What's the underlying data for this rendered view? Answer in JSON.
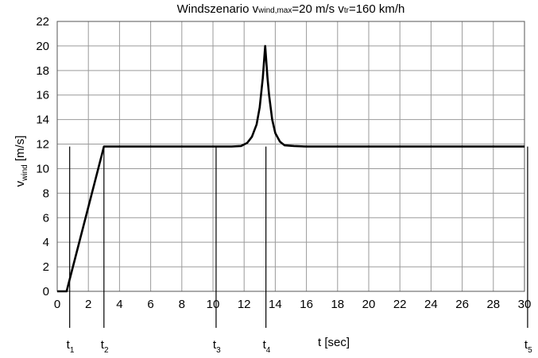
{
  "chart_data": {
    "type": "line",
    "title_parts": {
      "t1": "Windszenario v",
      "s1": "wind,max",
      "t2": "=20 m/s v",
      "s2": "tr",
      "t3": "=160 km/h"
    },
    "xlabel": "t [sec]",
    "ylabel_main": "v",
    "ylabel_sub": "wind",
    "ylabel_tail": " [m/s]",
    "xlim": [
      0,
      30
    ],
    "ylim": [
      0,
      22
    ],
    "xticks": [
      "0",
      "2",
      "4",
      "6",
      "8",
      "10",
      "12",
      "14",
      "16",
      "18",
      "20",
      "22",
      "24",
      "26",
      "28",
      "30"
    ],
    "yticks": [
      "0",
      "2",
      "4",
      "6",
      "8",
      "10",
      "12",
      "14",
      "16",
      "18",
      "20",
      "22"
    ],
    "grid": true,
    "series": [
      {
        "x": [
          0,
          0.6,
          3.0,
          11.2,
          11.8,
          12.2,
          12.5,
          12.8,
          13.0,
          13.2,
          13.35,
          13.5,
          13.6,
          13.8,
          14.0,
          14.3,
          14.6,
          15.2,
          16.0,
          30.0
        ],
        "y": [
          0,
          0,
          11.8,
          11.8,
          11.85,
          12.1,
          12.6,
          13.6,
          15.0,
          17.4,
          20.0,
          17.4,
          16.0,
          14.0,
          12.9,
          12.2,
          11.9,
          11.85,
          11.8,
          11.8
        ]
      }
    ],
    "markers": [
      {
        "label": "t",
        "sub": "1",
        "x": 0.8
      },
      {
        "label": "t",
        "sub": "2",
        "x": 3.0
      },
      {
        "label": "t",
        "sub": "3",
        "x": 10.2
      },
      {
        "label": "t",
        "sub": "4",
        "x": 13.4
      },
      {
        "label": "t",
        "sub": "5",
        "x": 30.2
      }
    ]
  }
}
